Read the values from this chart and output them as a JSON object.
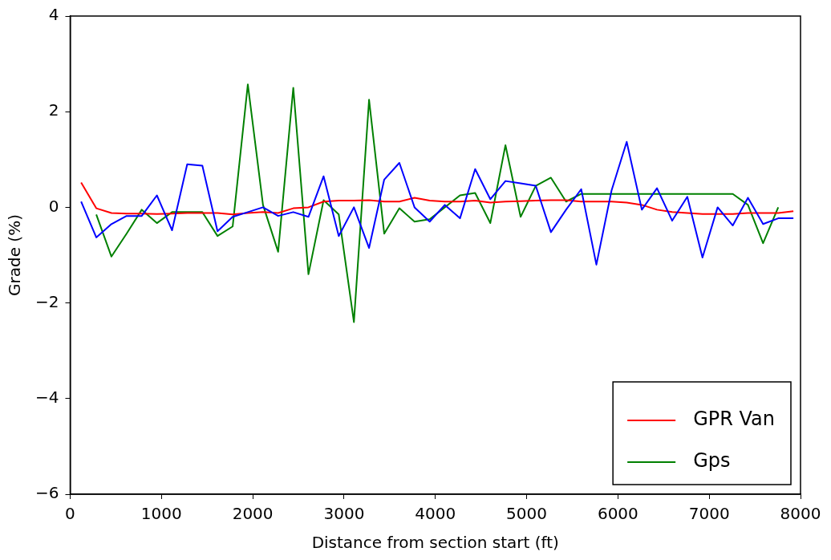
{
  "chart_data": {
    "type": "line",
    "xlabel": "Distance from section start (ft)",
    "ylabel": "Grade (%)",
    "x": [
      120,
      286,
      452,
      618,
      784,
      950,
      1116,
      1282,
      1448,
      1614,
      1780,
      1946,
      2112,
      2278,
      2444,
      2610,
      2776,
      2942,
      3108,
      3274,
      3440,
      3606,
      3772,
      3938,
      4104,
      4270,
      4436,
      4602,
      4768,
      4934,
      5100,
      5266,
      5432,
      5598,
      5764,
      5930,
      6096,
      6262,
      6428,
      6594,
      6760,
      6926,
      7092,
      7258,
      7424,
      7590,
      7756,
      7922
    ],
    "series": [
      {
        "color": "#0000ff",
        "values": [
          0.12,
          -0.63,
          -0.35,
          -0.18,
          -0.18,
          0.25,
          -0.48,
          0.9,
          0.87,
          -0.5,
          -0.2,
          -0.1,
          0,
          -0.18,
          -0.1,
          -0.2,
          0.65,
          -0.6,
          0,
          -0.85,
          0.58,
          0.93,
          0,
          -0.3,
          0.05,
          -0.23,
          0.8,
          0.17,
          0.55,
          0.5,
          0.45,
          -0.52,
          -0.05,
          0.38,
          -1.2,
          0.35,
          1.37,
          -0.05,
          0.4,
          -0.28,
          0.22,
          -1.05,
          0,
          -0.38,
          0.2,
          -0.35,
          -0.23,
          -0.23
        ]
      },
      {
        "name": "GPR Van",
        "color": "#ff0000",
        "values": [
          0.52,
          -0.02,
          -0.12,
          -0.13,
          -0.13,
          -0.14,
          -0.13,
          -0.12,
          -0.12,
          -0.12,
          -0.15,
          -0.12,
          -0.1,
          -0.12,
          -0.02,
          0,
          0.12,
          0.14,
          0.14,
          0.15,
          0.12,
          0.12,
          0.2,
          0.14,
          0.12,
          0.12,
          0.14,
          0.1,
          0.12,
          0.13,
          0.14,
          0.15,
          0.15,
          0.12,
          0.12,
          0.12,
          0.1,
          0.05,
          -0.05,
          -0.1,
          -0.12,
          -0.14,
          -0.14,
          -0.14,
          -0.12,
          -0.12,
          -0.12,
          -0.08
        ]
      },
      {
        "name": "Gps",
        "color": "#008000",
        "values": [
          null,
          -0.15,
          -1.03,
          -0.55,
          -0.05,
          -0.33,
          -0.1,
          -0.1,
          -0.1,
          -0.6,
          -0.4,
          2.57,
          0.05,
          -0.93,
          2.5,
          -1.4,
          0.15,
          -0.15,
          -2.4,
          2.25,
          -0.55,
          -0.02,
          -0.3,
          -0.25,
          0,
          0.25,
          0.3,
          -0.33,
          1.3,
          -0.2,
          0.45,
          0.62,
          0.12,
          0.28,
          0.28,
          0.28,
          0.28,
          0.28,
          0.28,
          0.28,
          0.28,
          0.28,
          0.28,
          0.28,
          0.05,
          -0.75,
          0,
          null
        ]
      }
    ],
    "xlim": [
      0,
      8000
    ],
    "xticks": [
      0,
      1000,
      2000,
      3000,
      4000,
      5000,
      6000,
      7000,
      8000
    ],
    "ylim": [
      -6,
      4
    ],
    "yticks": [
      -6,
      -4,
      -2,
      0,
      2,
      4
    ],
    "grid": false,
    "legend": "bottom right"
  }
}
